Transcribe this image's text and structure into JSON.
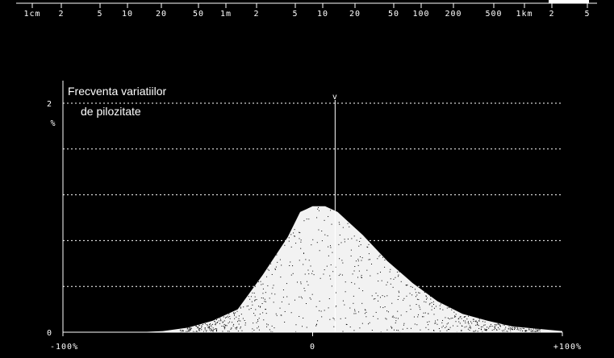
{
  "scale_bar": {
    "ticks": [
      "1cm",
      "2",
      "5",
      "10",
      "20",
      "50",
      "1m",
      "2",
      "5",
      "10",
      "20",
      "50",
      "100",
      "200",
      "500",
      "1km",
      "2",
      "5"
    ]
  },
  "chart_data": {
    "type": "area",
    "title_line1": "Frecventa variatiilor",
    "title_line2": "de pilozitate",
    "y_unit": "%",
    "x": [
      -100,
      -90,
      -80,
      -70,
      -60,
      -50,
      -40,
      -30,
      -20,
      -10,
      -5,
      0,
      5,
      10,
      15,
      20,
      30,
      40,
      50,
      60,
      70,
      80,
      90,
      100
    ],
    "values": [
      0,
      0,
      0,
      0,
      0.01,
      0.04,
      0.1,
      0.2,
      0.5,
      0.83,
      1.05,
      1.1,
      1.1,
      1.05,
      0.95,
      0.85,
      0.62,
      0.43,
      0.27,
      0.16,
      0.1,
      0.05,
      0.03,
      0.01
    ],
    "xlim": [
      -100,
      100
    ],
    "ylim": [
      0,
      2
    ],
    "x_tick_labels": [
      {
        "value": -100,
        "label": "-100%"
      },
      {
        "value": 0,
        "label": "0"
      },
      {
        "value": 100,
        "label": "+100%"
      }
    ],
    "y_tick_labels": [
      {
        "value": 0,
        "label": "0"
      },
      {
        "value": 2,
        "label": "2"
      }
    ],
    "grid": true,
    "marker": {
      "x": 9,
      "label": "v"
    }
  }
}
